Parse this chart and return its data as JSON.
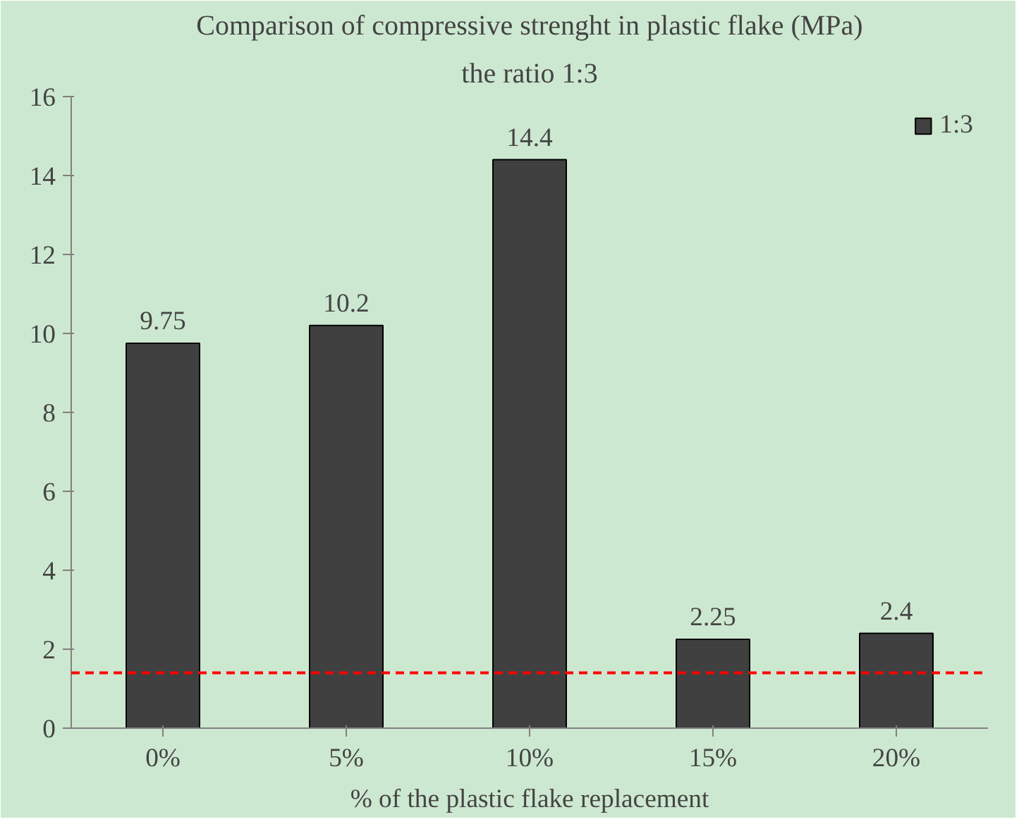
{
  "chart_data": {
    "type": "bar",
    "title": "Comparison of compressive strenght in plastic flake (MPa)",
    "subtitle": "the ratio 1:3",
    "xlabel": "% of the plastic flake replacement",
    "categories": [
      "0%",
      "5%",
      "10%",
      "15%",
      "20%"
    ],
    "series": [
      {
        "name": "1:3",
        "color": "#404040",
        "values": [
          9.75,
          10.2,
          14.4,
          2.25,
          2.4
        ]
      }
    ],
    "data_labels": true,
    "ylim": [
      0,
      16
    ],
    "yticks": [
      0,
      2,
      4,
      6,
      8,
      10,
      12,
      14,
      16
    ],
    "grid": false,
    "legend": "top right",
    "ref_lines": [
      {
        "axis": "y",
        "value": 1.4,
        "color": "#ff0000",
        "line_style": "dashed"
      }
    ]
  }
}
